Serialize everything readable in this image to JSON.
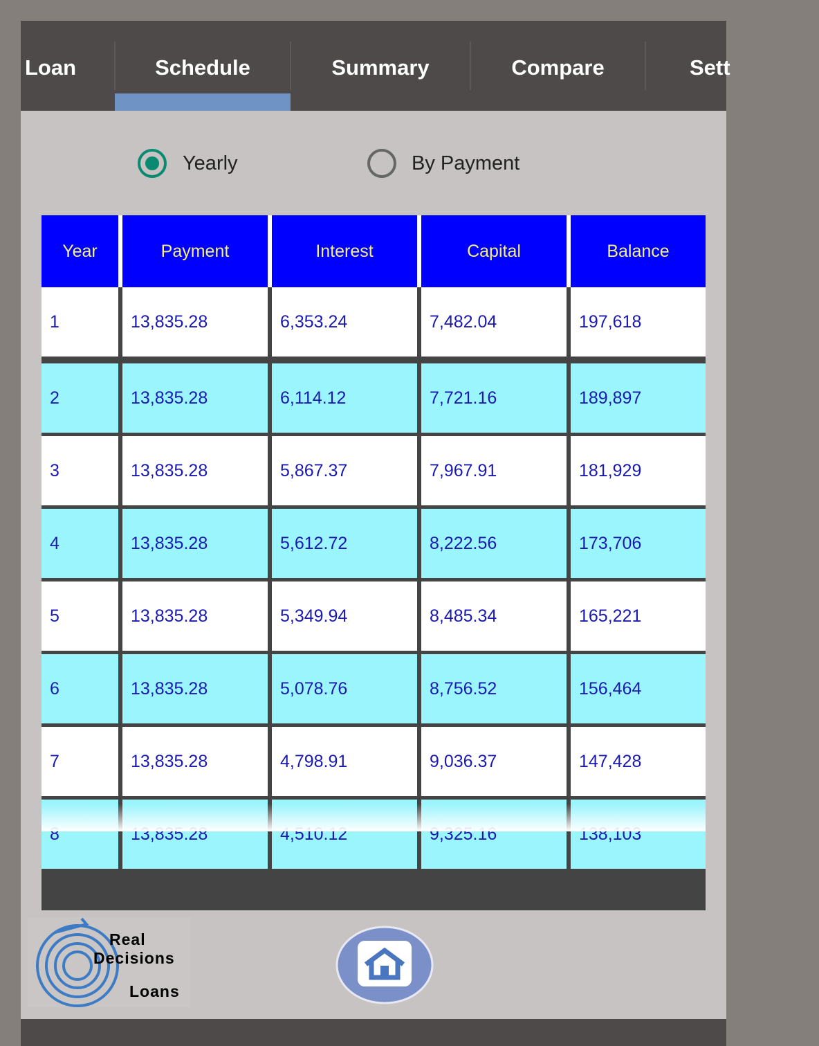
{
  "tabs": [
    "Loan",
    "Schedule",
    "Summary",
    "Compare",
    "Sett"
  ],
  "view_options": [
    "Yearly",
    "By Payment"
  ],
  "table": {
    "headers": [
      "Year",
      "Payment",
      "Interest",
      "Capital",
      "Balance"
    ],
    "rows": [
      [
        "1",
        "13,835.28",
        "6,353.24",
        "7,482.04",
        "197,618"
      ],
      [
        "2",
        "13,835.28",
        "6,114.12",
        "7,721.16",
        "189,897"
      ],
      [
        "3",
        "13,835.28",
        "5,867.37",
        "7,967.91",
        "181,929"
      ],
      [
        "4",
        "13,835.28",
        "5,612.72",
        "8,222.56",
        "173,706"
      ],
      [
        "5",
        "13,835.28",
        "5,349.94",
        "8,485.34",
        "165,221"
      ],
      [
        "6",
        "13,835.28",
        "5,078.76",
        "8,756.52",
        "156,464"
      ],
      [
        "7",
        "13,835.28",
        "4,798.91",
        "9,036.37",
        "147,428"
      ],
      [
        "8",
        "13,835.28",
        "4,510.12",
        "9,325.16",
        "138,103"
      ]
    ]
  },
  "logo": {
    "line1": "Real",
    "line2": "Decisions",
    "line3": "Loans"
  }
}
